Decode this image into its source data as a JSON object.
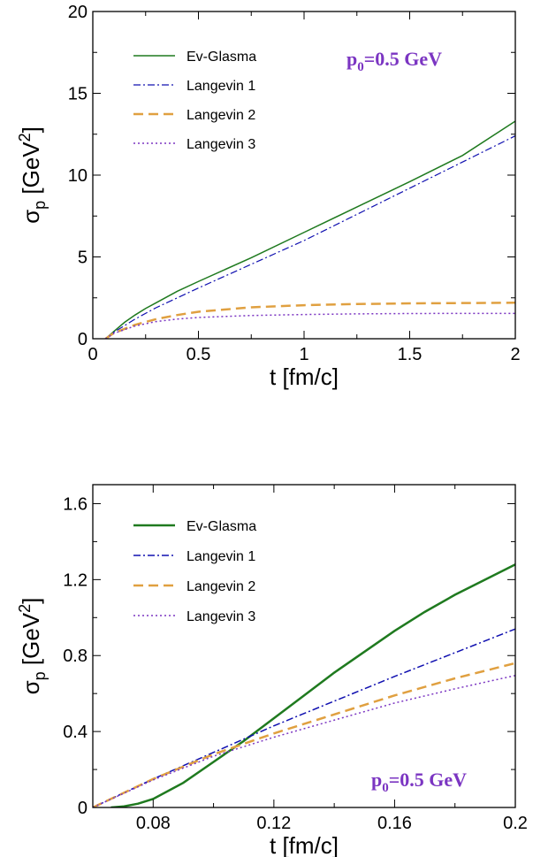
{
  "chart_data": [
    {
      "type": "line",
      "title": "",
      "xlabel": "t [fm/c]",
      "ylabel": {
        "main": "σ",
        "sub": "p",
        "unit": " [GeV",
        "sup": "2",
        "close": "]"
      },
      "xlim": [
        0,
        2
      ],
      "ylim": [
        0,
        20
      ],
      "xticks": [
        0,
        0.5,
        1,
        1.5,
        2
      ],
      "xtick_labels": [
        "0",
        "0.5",
        "1",
        "1.5",
        "2"
      ],
      "yticks": [
        0,
        5,
        10,
        15,
        20
      ],
      "ytick_labels": [
        "0",
        "5",
        "10",
        "15",
        "20"
      ],
      "annotation": {
        "main": "p",
        "sub": "0",
        "rest": "=0.5 GeV"
      },
      "legend_placement": "top-left",
      "series": [
        {
          "name": "Ev-Glasma",
          "color": "#1f7a1f",
          "style": "solid",
          "x": [
            0.06,
            0.1,
            0.15,
            0.2,
            0.25,
            0.3,
            0.4,
            0.5,
            0.75,
            1.0,
            1.25,
            1.5,
            1.75,
            2.0
          ],
          "y": [
            0,
            0.45,
            1.0,
            1.45,
            1.85,
            2.2,
            2.9,
            3.5,
            4.95,
            6.5,
            8.05,
            9.6,
            11.2,
            13.3
          ]
        },
        {
          "name": "Langevin 1",
          "color": "#1010b0",
          "style": "dashdot",
          "x": [
            0.06,
            0.1,
            0.2,
            0.3,
            0.5,
            0.75,
            1.0,
            1.25,
            1.5,
            1.75,
            2.0
          ],
          "y": [
            0,
            0.4,
            1.2,
            1.9,
            3.1,
            4.55,
            6.0,
            7.6,
            9.2,
            10.8,
            12.4
          ]
        },
        {
          "name": "Langevin 2",
          "color": "#e0a040",
          "style": "longdash",
          "x": [
            0.06,
            0.1,
            0.2,
            0.3,
            0.4,
            0.5,
            0.75,
            1.0,
            1.25,
            1.5,
            1.75,
            2.0
          ],
          "y": [
            0,
            0.35,
            0.85,
            1.2,
            1.45,
            1.65,
            1.92,
            2.05,
            2.12,
            2.16,
            2.18,
            2.2
          ]
        },
        {
          "name": "Langevin 3",
          "color": "#7b35c2",
          "style": "dotted",
          "x": [
            0.06,
            0.1,
            0.2,
            0.3,
            0.4,
            0.5,
            0.75,
            1.0,
            1.25,
            1.5,
            1.75,
            2.0
          ],
          "y": [
            0,
            0.33,
            0.78,
            1.05,
            1.2,
            1.3,
            1.42,
            1.48,
            1.52,
            1.54,
            1.55,
            1.55
          ]
        }
      ]
    },
    {
      "type": "line",
      "title": "",
      "xlabel": "t [fm/c]",
      "ylabel": {
        "main": "σ",
        "sub": "p",
        "unit": " [GeV",
        "sup": "2",
        "close": "]"
      },
      "xlim": [
        0.06,
        0.2
      ],
      "ylim": [
        0,
        1.7
      ],
      "xticks": [
        0.08,
        0.12,
        0.16,
        0.2
      ],
      "xtick_labels": [
        "0.08",
        "0.12",
        "0.16",
        "0.2"
      ],
      "yticks": [
        0,
        0.4,
        0.8,
        1.2,
        1.6
      ],
      "ytick_labels": [
        "0",
        "0.4",
        "0.8",
        "1.2",
        "1.6"
      ],
      "annotation": {
        "main": "p",
        "sub": "0",
        "rest": "=0.5 GeV"
      },
      "legend_placement": "top-left",
      "series": [
        {
          "name": "Ev-Glasma",
          "color": "#1f7a1f",
          "style": "solid",
          "x": [
            0.066,
            0.07,
            0.075,
            0.08,
            0.09,
            0.1,
            0.11,
            0.12,
            0.13,
            0.14,
            0.15,
            0.16,
            0.17,
            0.18,
            0.19,
            0.2
          ],
          "y": [
            0,
            0.005,
            0.02,
            0.045,
            0.13,
            0.24,
            0.35,
            0.47,
            0.59,
            0.71,
            0.82,
            0.93,
            1.03,
            1.12,
            1.2,
            1.28
          ]
        },
        {
          "name": "Langevin 1",
          "color": "#1010b0",
          "style": "dashdot",
          "x": [
            0.06,
            0.08,
            0.1,
            0.12,
            0.14,
            0.16,
            0.18,
            0.2
          ],
          "y": [
            0,
            0.15,
            0.29,
            0.43,
            0.56,
            0.69,
            0.815,
            0.94
          ]
        },
        {
          "name": "Langevin 2",
          "color": "#e0a040",
          "style": "longdash",
          "x": [
            0.06,
            0.08,
            0.1,
            0.12,
            0.14,
            0.16,
            0.18,
            0.2
          ],
          "y": [
            0,
            0.15,
            0.28,
            0.39,
            0.49,
            0.59,
            0.68,
            0.76
          ]
        },
        {
          "name": "Langevin 3",
          "color": "#7b35c2",
          "style": "dotted",
          "x": [
            0.06,
            0.08,
            0.1,
            0.12,
            0.14,
            0.16,
            0.18,
            0.2
          ],
          "y": [
            0,
            0.145,
            0.27,
            0.37,
            0.46,
            0.55,
            0.625,
            0.695
          ]
        }
      ]
    }
  ]
}
